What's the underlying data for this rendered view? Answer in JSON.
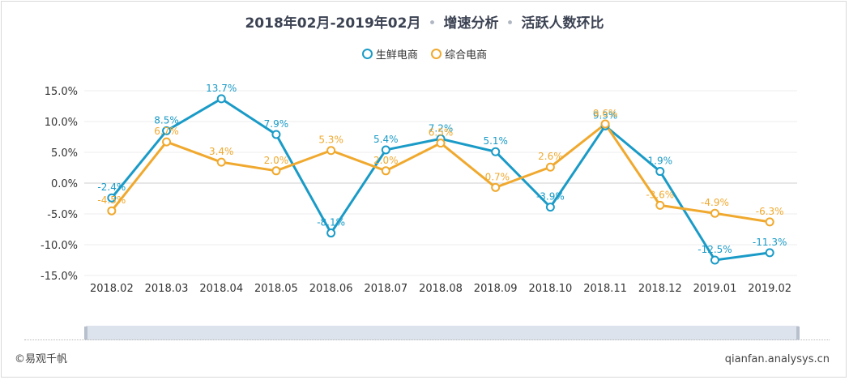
{
  "header": {
    "title_part1": "2018年02月-2019年02月",
    "title_part2": "增速分析",
    "title_part3": "活跃人数环比",
    "separator": "•"
  },
  "footer": {
    "copyright": "©易观千帆",
    "site": "qianfan.analysys.cn"
  },
  "chart_data": {
    "type": "line",
    "categories": [
      "2018.02",
      "2018.03",
      "2018.04",
      "2018.05",
      "2018.06",
      "2018.07",
      "2018.08",
      "2018.09",
      "2018.10",
      "2018.11",
      "2018.12",
      "2019.01",
      "2019.02"
    ],
    "series": [
      {
        "name": "生鲜电商",
        "color": "#1a9bc7",
        "values": [
          -2.4,
          8.5,
          13.7,
          7.9,
          -8.1,
          5.4,
          7.2,
          5.1,
          -3.9,
          9.3,
          1.9,
          -12.5,
          -11.3
        ],
        "labels": [
          "-2.4%",
          "8.5%",
          "13.7%",
          "7.9%",
          "-8.1%",
          "5.4%",
          "7.2%",
          "5.1%",
          "-3.9%",
          "9.3%",
          "1.9%",
          "-12.5%",
          "-11.3%"
        ]
      },
      {
        "name": "综合电商",
        "color": "#f0a92e",
        "values": [
          -4.5,
          6.7,
          3.4,
          2.0,
          5.3,
          2.0,
          6.5,
          -0.7,
          2.6,
          9.6,
          -3.6,
          -4.9,
          -6.3
        ],
        "labels": [
          "-4.5%",
          "6.7%",
          "3.4%",
          "2.0%",
          "5.3%",
          "2.0%",
          "6.5%",
          "-0.7%",
          "2.6%",
          "9.6%",
          "-3.6%",
          "-4.9%",
          "-6.3%"
        ]
      }
    ],
    "y_ticks": [
      15,
      10,
      5,
      0,
      -5,
      -10,
      -15
    ],
    "y_tick_labels": [
      "15.0%",
      "10.0%",
      "5.0%",
      "0.0%",
      "-5.0%",
      "-10.0%",
      "-15.0%"
    ],
    "ylim": [
      -15,
      15
    ],
    "grid": true,
    "legend_position": "top-center"
  }
}
